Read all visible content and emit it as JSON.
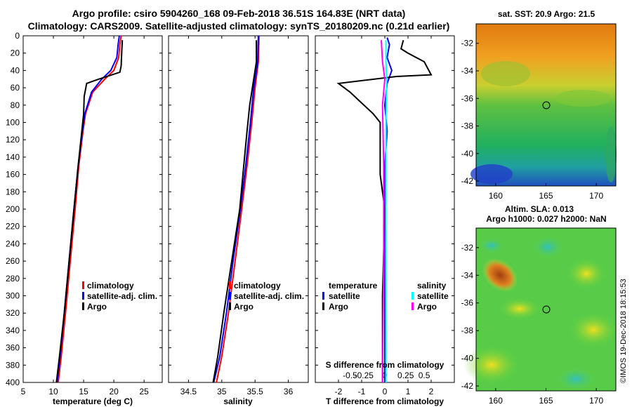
{
  "title_line1": "Argo profile: csiro 5904260_168 09-Feb-2018 36.51S 164.83E (NRT data)",
  "title_line2": "Climatology: CARS2009. Satellite-adjusted climatology: synTS_20180209.nc (0.21d earlier)",
  "credit": "©IMOS 19-Dec-2018 18:15:53",
  "colors": {
    "climatology": "#ff0000",
    "satellite": "#0000ff",
    "argo": "#000000",
    "sat_s": "#00ffff",
    "argo_s": "#ff00ff"
  },
  "chart_data": [
    {
      "id": "temperature",
      "type": "line",
      "xlabel": "temperature (deg C)",
      "ylabel": "",
      "xlim": [
        5,
        28
      ],
      "xticks": [
        5,
        10,
        15,
        20,
        25
      ],
      "ylim": [
        0,
        400
      ],
      "yticks": [
        0,
        20,
        40,
        60,
        80,
        100,
        120,
        140,
        160,
        180,
        200,
        220,
        240,
        260,
        280,
        300,
        320,
        340,
        360,
        380,
        400
      ],
      "legend": [
        "climatology",
        "satellite-adj. clim.",
        "Argo"
      ],
      "series": [
        {
          "name": "climatology",
          "color": "#ff0000",
          "points": [
            [
              21.2,
              0
            ],
            [
              21,
              10
            ],
            [
              20.8,
              25
            ],
            [
              20,
              40
            ],
            [
              18.5,
              50
            ],
            [
              16.5,
              65
            ],
            [
              15.3,
              90
            ],
            [
              14.9,
              110
            ],
            [
              14.2,
              150
            ],
            [
              13.6,
              200
            ],
            [
              12.8,
              260
            ],
            [
              12.0,
              320
            ],
            [
              11.3,
              370
            ],
            [
              10.8,
              400
            ]
          ]
        },
        {
          "name": "satellite-adj. clim.",
          "color": "#0000ff",
          "points": [
            [
              20.9,
              0
            ],
            [
              20.7,
              10
            ],
            [
              20.5,
              25
            ],
            [
              19.5,
              40
            ],
            [
              18,
              50
            ],
            [
              16.3,
              65
            ],
            [
              15.2,
              90
            ],
            [
              14.8,
              110
            ],
            [
              14.1,
              150
            ],
            [
              13.4,
              200
            ],
            [
              12.6,
              260
            ],
            [
              11.8,
              320
            ],
            [
              11.1,
              370
            ],
            [
              10.6,
              400
            ]
          ]
        },
        {
          "name": "Argo",
          "color": "#000000",
          "points": [
            [
              21.4,
              5
            ],
            [
              21.3,
              20
            ],
            [
              21.2,
              35
            ],
            [
              21.0,
              42
            ],
            [
              17.5,
              50
            ],
            [
              15.5,
              55
            ],
            [
              15.1,
              70
            ],
            [
              15.0,
              90
            ],
            [
              14.7,
              110
            ],
            [
              14.1,
              150
            ],
            [
              13.4,
              200
            ],
            [
              12.6,
              260
            ],
            [
              11.8,
              320
            ],
            [
              11.0,
              370
            ],
            [
              10.5,
              400
            ]
          ]
        }
      ]
    },
    {
      "id": "salinity",
      "type": "line",
      "xlabel": "salinity",
      "xlim": [
        34.2,
        36.3
      ],
      "xticks": [
        34.5,
        35,
        35.5,
        36
      ],
      "ylim": [
        0,
        400
      ],
      "legend": [
        "climatology",
        "satellite-adj. clim.",
        "Argo"
      ],
      "series": [
        {
          "name": "climatology",
          "color": "#ff0000",
          "points": [
            [
              35.56,
              0
            ],
            [
              35.55,
              30
            ],
            [
              35.5,
              60
            ],
            [
              35.45,
              100
            ],
            [
              35.38,
              150
            ],
            [
              35.3,
              200
            ],
            [
              35.2,
              260
            ],
            [
              35.1,
              320
            ],
            [
              35.0,
              370
            ],
            [
              34.92,
              400
            ]
          ]
        },
        {
          "name": "satellite-adj. clim.",
          "color": "#0000ff",
          "points": [
            [
              35.55,
              0
            ],
            [
              35.54,
              30
            ],
            [
              35.48,
              60
            ],
            [
              35.43,
              100
            ],
            [
              35.36,
              150
            ],
            [
              35.28,
              200
            ],
            [
              35.17,
              260
            ],
            [
              35.07,
              320
            ],
            [
              34.97,
              370
            ],
            [
              34.88,
              400
            ]
          ]
        },
        {
          "name": "Argo",
          "color": "#000000",
          "points": [
            [
              35.52,
              5
            ],
            [
              35.52,
              30
            ],
            [
              35.48,
              50
            ],
            [
              35.42,
              80
            ],
            [
              35.38,
              110
            ],
            [
              35.33,
              150
            ],
            [
              35.27,
              200
            ],
            [
              35.15,
              260
            ],
            [
              35.03,
              320
            ],
            [
              34.94,
              370
            ],
            [
              34.87,
              400
            ]
          ]
        }
      ]
    },
    {
      "id": "difference",
      "type": "line",
      "xlabel": "T difference from climatology",
      "xlabel2": "S difference from climatology",
      "xlim": [
        -3,
        3
      ],
      "xticks": [
        -2,
        -1,
        0,
        1,
        2
      ],
      "xticks2_labels": [
        "-0.5",
        "-0.25",
        "0",
        "0.25",
        "0.5"
      ],
      "ylim": [
        0,
        400
      ],
      "legend_temperature_title": "temperature",
      "legend_salinity_title": "salinity",
      "legend_temperature": [
        "satellite",
        "Argo"
      ],
      "legend_salinity": [
        "satellite",
        "Argo"
      ],
      "series": [
        {
          "name": "temperature satellite",
          "color": "#0000ff",
          "points": [
            [
              0.1,
              2
            ],
            [
              0.2,
              10
            ],
            [
              0.1,
              25
            ],
            [
              0.3,
              40
            ],
            [
              0.1,
              55
            ],
            [
              0,
              80
            ],
            [
              0.1,
              110
            ],
            [
              0,
              150
            ],
            [
              0,
              200
            ],
            [
              0,
              300
            ],
            [
              0,
              400
            ]
          ]
        },
        {
          "name": "temperature Argo",
          "color": "#000000",
          "points": [
            [
              0.8,
              5
            ],
            [
              0.7,
              15
            ],
            [
              1.0,
              20
            ],
            [
              1.7,
              30
            ],
            [
              2.0,
              45
            ],
            [
              0.5,
              47
            ],
            [
              -2.0,
              55
            ],
            [
              -1.5,
              65
            ],
            [
              -0.5,
              90
            ],
            [
              -0.2,
              100
            ],
            [
              -0.2,
              160
            ],
            [
              0,
              200
            ],
            [
              -0.1,
              300
            ],
            [
              -0.1,
              400
            ]
          ]
        },
        {
          "name": "salinity satellite",
          "color": "#00ffff",
          "points": [
            [
              0.05,
              5
            ],
            [
              0.05,
              30
            ],
            [
              0.08,
              50
            ],
            [
              0.05,
              100
            ],
            [
              0.05,
              200
            ],
            [
              0.05,
              300
            ],
            [
              0.05,
              400
            ]
          ]
        },
        {
          "name": "salinity Argo",
          "color": "#ff00ff",
          "points": [
            [
              -0.15,
              5
            ],
            [
              -0.1,
              30
            ],
            [
              0,
              50
            ],
            [
              -0.1,
              80
            ],
            [
              -0.05,
              150
            ],
            [
              -0.05,
              250
            ],
            [
              -0.1,
              400
            ]
          ]
        }
      ]
    }
  ],
  "map_sst": {
    "title": "sat. SST: 20.9 Argo: 21.5",
    "xticks": [
      "160",
      "165",
      "170"
    ],
    "yticks": [
      "-32",
      "-34",
      "-36",
      "-38",
      "-40",
      "-42"
    ],
    "marker": [
      164.83,
      -36.51
    ]
  },
  "map_sla": {
    "title_line1": "Altim. SLA: 0.013",
    "title_line2": "Argo h1000: 0.027 h2000: NaN",
    "xticks": [
      "160",
      "165",
      "170"
    ],
    "yticks": [
      "-32",
      "-34",
      "-36",
      "-38",
      "-40",
      "-42"
    ],
    "marker": [
      164.83,
      -36.51
    ]
  }
}
